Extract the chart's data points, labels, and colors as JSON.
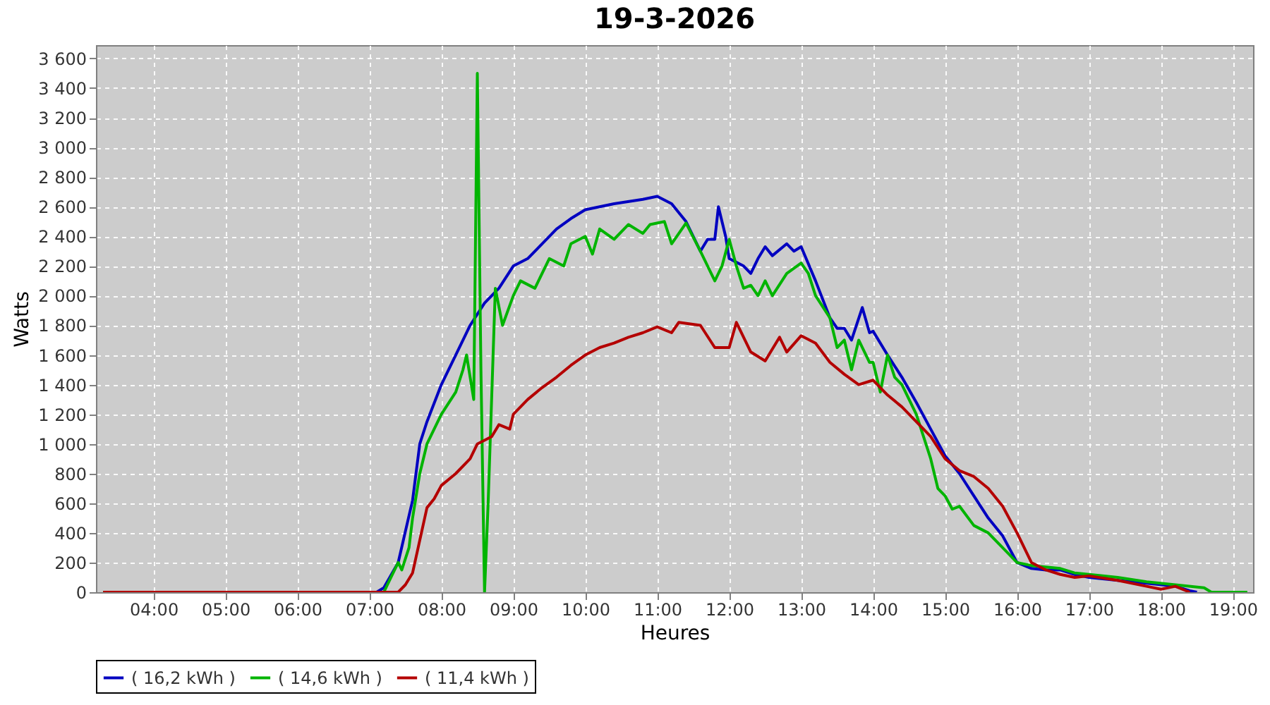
{
  "chart_data": {
    "type": "line",
    "title": "19-3-2026",
    "xlabel": "Heures",
    "ylabel": "Watts",
    "xlim": [
      3.2,
      19.28
    ],
    "xticks": [
      {
        "value": 4,
        "label": "04:00"
      },
      {
        "value": 5,
        "label": "05:00"
      },
      {
        "value": 6,
        "label": "06:00"
      },
      {
        "value": 7,
        "label": "07:00"
      },
      {
        "value": 8,
        "label": "08:00"
      },
      {
        "value": 9,
        "label": "09:00"
      },
      {
        "value": 10,
        "label": "10:00"
      },
      {
        "value": 11,
        "label": "11:00"
      },
      {
        "value": 12,
        "label": "12:00"
      },
      {
        "value": 13,
        "label": "13:00"
      },
      {
        "value": 14,
        "label": "14:00"
      },
      {
        "value": 15,
        "label": "15:00"
      },
      {
        "value": 16,
        "label": "16:00"
      },
      {
        "value": 17,
        "label": "17:00"
      },
      {
        "value": 18,
        "label": "18:00"
      },
      {
        "value": 19,
        "label": "19:00"
      }
    ],
    "ylim": [
      0,
      3690
    ],
    "yticks": [
      0,
      200,
      400,
      600,
      800,
      {
        "value": 1000,
        "label": "1 000"
      },
      {
        "value": 1200,
        "label": "1 200"
      },
      {
        "value": 1400,
        "label": "1 400"
      },
      {
        "value": 1600,
        "label": "1 600"
      },
      {
        "value": 1800,
        "label": "1 800"
      },
      {
        "value": 2000,
        "label": "2 000"
      },
      {
        "value": 2200,
        "label": "2 200"
      },
      {
        "value": 2400,
        "label": "2 400"
      },
      {
        "value": 2600,
        "label": "2 600"
      },
      {
        "value": 2800,
        "label": "2 800"
      },
      {
        "value": 3000,
        "label": "3 000"
      },
      {
        "value": 3200,
        "label": "3 200"
      },
      {
        "value": 3400,
        "label": "3 400"
      },
      {
        "value": 3600,
        "label": "3 600"
      }
    ],
    "grid": true,
    "legend": "bottom",
    "marker": "none",
    "line_style": "solid",
    "series": [
      {
        "name": "( 16,2 kWh )",
        "color": "#0000c0",
        "x": [
          3.3,
          7.1,
          7.2,
          7.4,
          7.6,
          7.7,
          7.8,
          8.0,
          8.2,
          8.4,
          8.6,
          8.8,
          9.0,
          9.2,
          9.4,
          9.6,
          9.8,
          10.0,
          10.4,
          10.8,
          11.0,
          11.2,
          11.4,
          11.6,
          11.7,
          11.8,
          11.85,
          11.95,
          12.0,
          12.2,
          12.3,
          12.4,
          12.5,
          12.6,
          12.8,
          12.9,
          13.0,
          13.2,
          13.4,
          13.5,
          13.6,
          13.7,
          13.85,
          13.95,
          14.0,
          14.2,
          14.4,
          14.6,
          14.8,
          15.0,
          15.2,
          15.4,
          15.6,
          15.8,
          16.0,
          16.2,
          16.4,
          16.6,
          16.8,
          17.0,
          17.4,
          17.8,
          18.2,
          18.4,
          18.5
        ],
        "values": [
          0,
          0,
          30,
          200,
          620,
          1000,
          1150,
          1400,
          1600,
          1800,
          1950,
          2050,
          2200,
          2250,
          2350,
          2450,
          2520,
          2580,
          2620,
          2650,
          2670,
          2620,
          2500,
          2300,
          2380,
          2380,
          2600,
          2400,
          2250,
          2200,
          2150,
          2250,
          2330,
          2270,
          2350,
          2300,
          2330,
          2100,
          1850,
          1780,
          1780,
          1700,
          1920,
          1750,
          1760,
          1600,
          1450,
          1280,
          1100,
          920,
          800,
          650,
          500,
          380,
          200,
          160,
          150,
          150,
          120,
          100,
          80,
          60,
          40,
          10,
          0
        ]
      },
      {
        "name": "( 14,6 kWh )",
        "color": "#00b400",
        "x": [
          3.3,
          7.2,
          7.3,
          7.4,
          7.45,
          7.55,
          7.6,
          7.7,
          7.8,
          8.0,
          8.2,
          8.3,
          8.35,
          8.45,
          8.5,
          8.55,
          8.6,
          8.65,
          8.75,
          8.85,
          9.0,
          9.1,
          9.3,
          9.5,
          9.7,
          9.8,
          10.0,
          10.1,
          10.2,
          10.4,
          10.6,
          10.8,
          10.9,
          11.1,
          11.2,
          11.4,
          11.6,
          11.8,
          11.9,
          12.0,
          12.1,
          12.2,
          12.3,
          12.4,
          12.5,
          12.6,
          12.8,
          13.0,
          13.1,
          13.2,
          13.4,
          13.5,
          13.6,
          13.7,
          13.8,
          13.95,
          14.0,
          14.1,
          14.2,
          14.3,
          14.4,
          14.6,
          14.8,
          14.9,
          15.0,
          15.1,
          15.2,
          15.4,
          15.6,
          15.8,
          16.0,
          16.2,
          16.4,
          16.6,
          16.8,
          17.0,
          17.4,
          17.8,
          18.2,
          18.6,
          18.7,
          19.2
        ],
        "values": [
          0,
          0,
          100,
          200,
          150,
          300,
          500,
          800,
          1000,
          1200,
          1350,
          1500,
          1600,
          1300,
          3500,
          1500,
          0,
          600,
          2050,
          1800,
          2000,
          2100,
          2050,
          2250,
          2200,
          2350,
          2400,
          2280,
          2450,
          2380,
          2480,
          2420,
          2480,
          2500,
          2350,
          2490,
          2300,
          2100,
          2200,
          2380,
          2200,
          2050,
          2070,
          2000,
          2100,
          2000,
          2150,
          2220,
          2150,
          2000,
          1850,
          1650,
          1700,
          1500,
          1700,
          1550,
          1550,
          1350,
          1600,
          1450,
          1400,
          1200,
          900,
          700,
          650,
          560,
          580,
          450,
          400,
          300,
          200,
          180,
          170,
          160,
          130,
          120,
          100,
          70,
          50,
          30,
          0,
          0
        ]
      },
      {
        "name": "( 11,4 kWh )",
        "color": "#b40000",
        "x": [
          3.3,
          7.4,
          7.5,
          7.6,
          7.7,
          7.8,
          7.9,
          8.0,
          8.2,
          8.4,
          8.5,
          8.7,
          8.8,
          8.95,
          9.0,
          9.2,
          9.4,
          9.6,
          9.8,
          10.0,
          10.2,
          10.4,
          10.6,
          10.8,
          11.0,
          11.2,
          11.3,
          11.6,
          11.8,
          12.0,
          12.1,
          12.3,
          12.5,
          12.7,
          12.8,
          13.0,
          13.2,
          13.4,
          13.6,
          13.8,
          14.0,
          14.2,
          14.4,
          14.6,
          14.8,
          15.0,
          15.2,
          15.4,
          15.6,
          15.8,
          16.0,
          16.2,
          16.4,
          16.6,
          16.8,
          17.0,
          17.4,
          17.8,
          18.0,
          18.2,
          18.4
        ],
        "values": [
          0,
          0,
          50,
          130,
          350,
          570,
          630,
          720,
          800,
          900,
          1000,
          1050,
          1130,
          1100,
          1200,
          1300,
          1380,
          1450,
          1530,
          1600,
          1650,
          1680,
          1720,
          1750,
          1790,
          1750,
          1820,
          1800,
          1650,
          1650,
          1820,
          1620,
          1560,
          1720,
          1620,
          1730,
          1680,
          1550,
          1470,
          1400,
          1430,
          1330,
          1250,
          1150,
          1050,
          900,
          820,
          780,
          700,
          580,
          400,
          200,
          150,
          120,
          100,
          110,
          80,
          40,
          20,
          40,
          0
        ]
      }
    ]
  }
}
